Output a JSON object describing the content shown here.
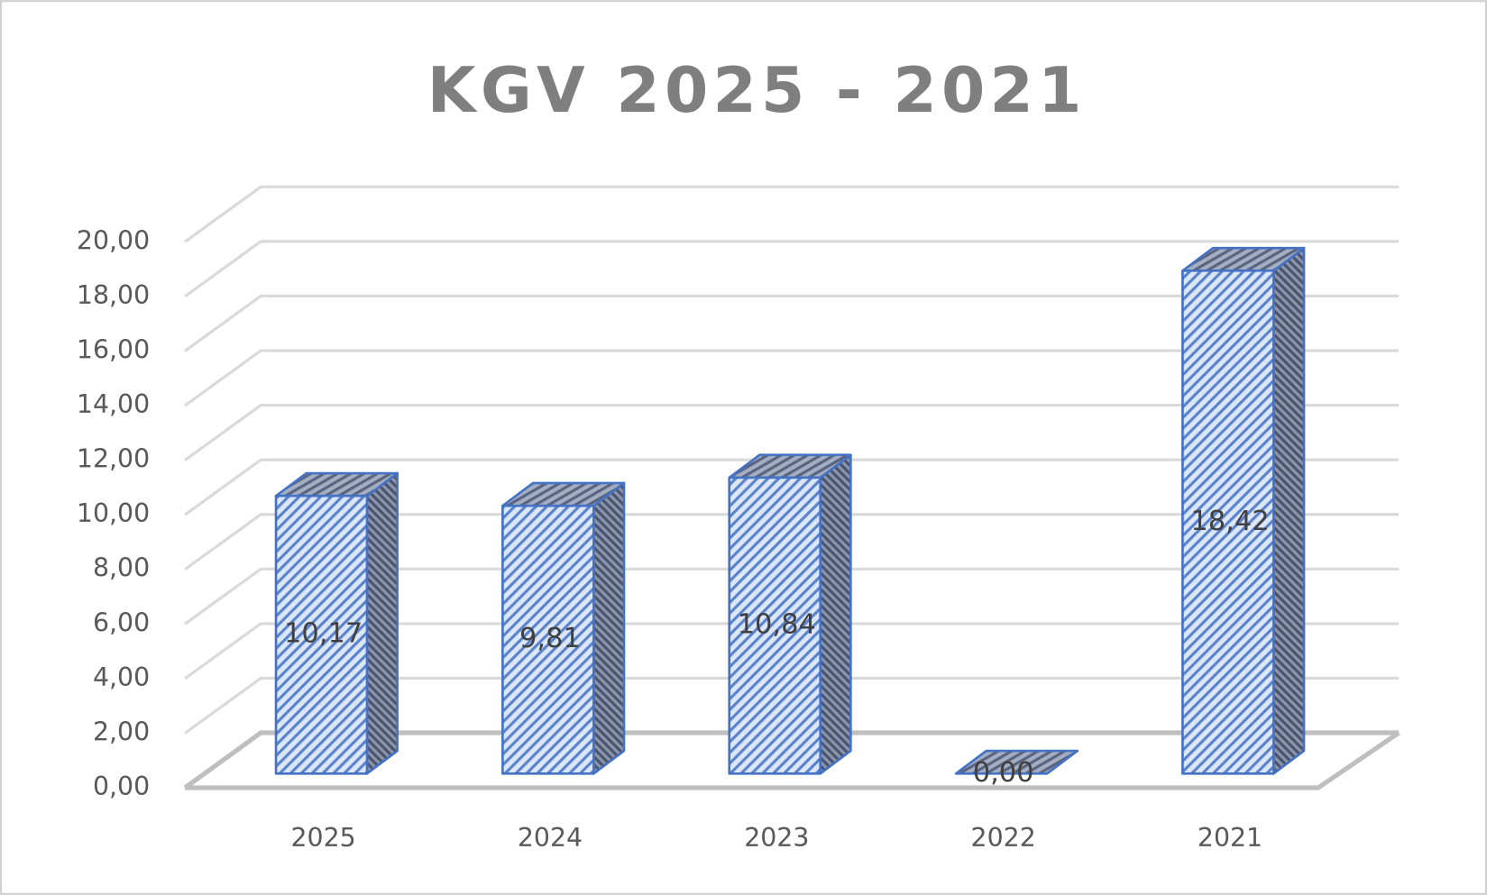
{
  "chart_data": {
    "type": "bar3d",
    "title": "KGV 2025 - 2021",
    "categories": [
      "2025",
      "2024",
      "2023",
      "2022",
      "2021"
    ],
    "values": [
      10.17,
      9.81,
      10.84,
      0,
      18.42
    ],
    "value_labels": [
      "10,17",
      "9,81",
      "10,84",
      "0,00",
      "18,42"
    ],
    "color": "#4472c4",
    "ylim": [
      0,
      20
    ],
    "yticks": [
      {
        "value": 0,
        "label": "0,00"
      },
      {
        "value": 2,
        "label": "2,00"
      },
      {
        "value": 4,
        "label": "4,00"
      },
      {
        "value": 6,
        "label": "6,00"
      },
      {
        "value": 8,
        "label": "8,00"
      },
      {
        "value": 10,
        "label": "10,00"
      },
      {
        "value": 12,
        "label": "12,00"
      },
      {
        "value": 14,
        "label": "14,00"
      },
      {
        "value": 16,
        "label": "16,00"
      },
      {
        "value": 18,
        "label": "18,00"
      },
      {
        "value": 20,
        "label": "20,00"
      }
    ],
    "grid": true
  }
}
